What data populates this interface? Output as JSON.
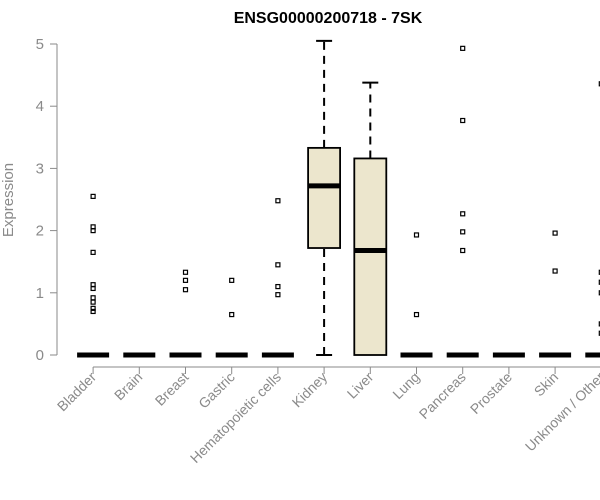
{
  "chart_data": {
    "type": "boxplot",
    "title": "ENSG00000200718 - 7SK",
    "ylabel": "Expression",
    "xlabel": "",
    "ylim": [
      0,
      5
    ],
    "yticks": [
      0,
      1,
      2,
      3,
      4,
      5
    ],
    "grid": false,
    "colors": {
      "box_fill": "#ece6cd",
      "stroke": "#000000",
      "axis": "#8a8a8a"
    },
    "categories": [
      "Bladder",
      "Brain",
      "Breast",
      "Gastric",
      "Hematopoietic cells",
      "Kidney",
      "Liver",
      "Lung",
      "Pancreas",
      "Prostate",
      "Skin",
      "Unknown / Other"
    ],
    "boxes": [
      {
        "category": "Bladder",
        "min": 0,
        "q1": 0,
        "median": 0,
        "q3": 0,
        "max": 0,
        "outliers": [
          0.7,
          0.75,
          0.85,
          0.92,
          1.07,
          1.13,
          1.65,
          2.0,
          2.06,
          2.55
        ]
      },
      {
        "category": "Brain",
        "min": 0,
        "q1": 0,
        "median": 0,
        "q3": 0,
        "max": 0,
        "outliers": []
      },
      {
        "category": "Breast",
        "min": 0,
        "q1": 0,
        "median": 0,
        "q3": 0,
        "max": 0,
        "outliers": [
          1.05,
          1.2,
          1.33
        ]
      },
      {
        "category": "Gastric",
        "min": 0,
        "q1": 0,
        "median": 0,
        "q3": 0,
        "max": 0,
        "outliers": [
          0.65,
          1.2
        ]
      },
      {
        "category": "Hematopoietic cells",
        "min": 0,
        "q1": 0,
        "median": 0,
        "q3": 0,
        "max": 0,
        "outliers": [
          0.97,
          1.1,
          1.45,
          2.48
        ]
      },
      {
        "category": "Kidney",
        "min": 0,
        "q1": 1.72,
        "median": 2.72,
        "q3": 3.33,
        "max": 5.05,
        "outliers": []
      },
      {
        "category": "Liver",
        "min": 0,
        "q1": 0,
        "median": 1.68,
        "q3": 3.16,
        "max": 4.38,
        "outliers": []
      },
      {
        "category": "Lung",
        "min": 0,
        "q1": 0,
        "median": 0,
        "q3": 0,
        "max": 0,
        "outliers": [
          0.65,
          1.93
        ]
      },
      {
        "category": "Pancreas",
        "min": 0,
        "q1": 0,
        "median": 0,
        "q3": 0,
        "max": 0,
        "outliers": [
          1.68,
          1.98,
          2.27,
          3.77,
          4.93
        ]
      },
      {
        "category": "Prostate",
        "min": 0,
        "q1": 0,
        "median": 0,
        "q3": 0,
        "max": 0,
        "outliers": []
      },
      {
        "category": "Skin",
        "min": 0,
        "q1": 0,
        "median": 0,
        "q3": 0,
        "max": 0,
        "outliers": [
          1.35,
          1.96
        ]
      },
      {
        "category": "Unknown / Other",
        "min": 0,
        "q1": 0,
        "median": 0,
        "q3": 0,
        "max": 0,
        "outliers": [
          0.35,
          0.5,
          1.0,
          1.17,
          1.33,
          4.36
        ]
      }
    ]
  }
}
